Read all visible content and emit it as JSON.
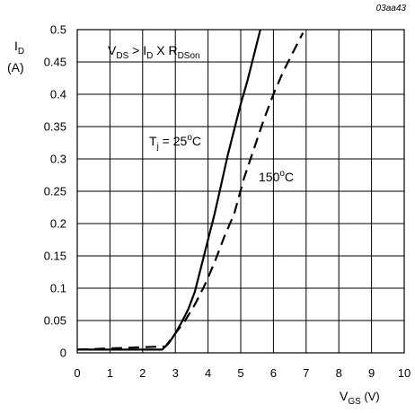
{
  "chart_data": {
    "type": "line",
    "figure_code": "03aa43",
    "xlim": [
      0,
      10
    ],
    "ylim": [
      0,
      0.5
    ],
    "x_ticks": [
      "0",
      "1",
      "2",
      "3",
      "4",
      "5",
      "6",
      "7",
      "8",
      "9",
      "10"
    ],
    "y_ticks": [
      "0",
      "0.05",
      "0.1",
      "0.15",
      "0.2",
      "0.25",
      "0.3",
      "0.35",
      "0.4",
      "0.45",
      "0.5"
    ],
    "grid": true,
    "ylabel": {
      "main": "I",
      "sub": "D",
      "unit": "(A)"
    },
    "xlabel": {
      "main": "V",
      "sub": "GS",
      "unit": " (V)"
    },
    "condition": {
      "v": "V",
      "v_sub": "DS",
      "gt": " > I",
      "i_sub": "D",
      "x": " X R",
      "r_sub": "DSon"
    },
    "series": [
      {
        "name_main": "T",
        "name_sub": "j",
        "name_rest": " = 25",
        "name_sup": "o",
        "name_unit": "C",
        "style": "solid",
        "x": [
          0,
          2.6,
          2.8,
          3.0,
          3.2,
          3.4,
          3.6,
          3.8,
          4.0,
          4.2,
          4.4,
          4.6,
          4.8,
          5.0,
          5.2,
          5.4,
          5.6
        ],
        "y": [
          0.005,
          0.005,
          0.015,
          0.03,
          0.048,
          0.068,
          0.095,
          0.135,
          0.175,
          0.215,
          0.26,
          0.305,
          0.345,
          0.385,
          0.42,
          0.46,
          0.5
        ]
      },
      {
        "name_main": "",
        "name_sub": "",
        "name_rest": "150",
        "name_sup": "o",
        "name_unit": "C",
        "style": "dashed",
        "x": [
          0,
          2.7,
          3.0,
          3.3,
          3.6,
          3.9,
          4.2,
          4.5,
          4.8,
          5.1,
          5.4,
          5.7,
          6.0,
          6.3,
          6.6,
          6.9
        ],
        "y": [
          0.005,
          0.01,
          0.03,
          0.05,
          0.075,
          0.105,
          0.14,
          0.18,
          0.215,
          0.27,
          0.315,
          0.36,
          0.4,
          0.435,
          0.465,
          0.495
        ]
      }
    ]
  }
}
